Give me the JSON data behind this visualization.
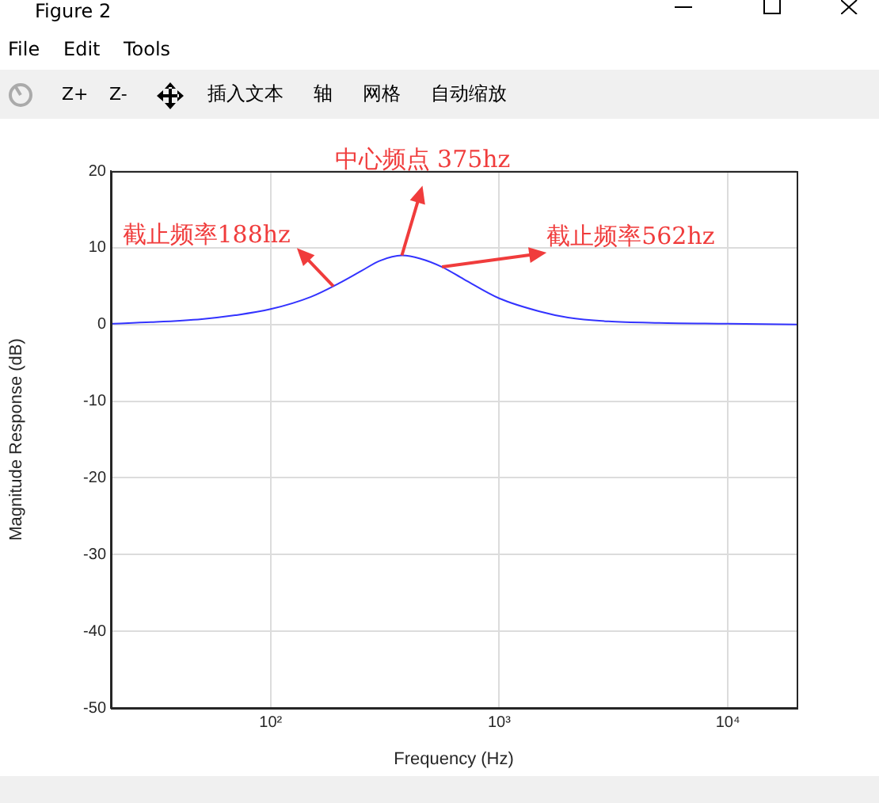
{
  "chart_data": {
    "type": "line",
    "xlabel": "Frequency (Hz)",
    "ylabel": "Magnitude Response (dB)",
    "log": "x",
    "grid": true,
    "marker": "none",
    "line_style": "solid",
    "legend": false,
    "xlim": [
      20,
      20000
    ],
    "xticks": [
      {
        "value": 100,
        "label": "10²"
      },
      {
        "value": 1000,
        "label": "10³"
      },
      {
        "value": 10000,
        "label": "10⁴"
      }
    ],
    "ylim": [
      -50,
      20
    ],
    "yticks": [
      -50,
      -40,
      -30,
      -20,
      -10,
      0,
      10,
      20
    ],
    "x": [
      20,
      30,
      50,
      70,
      100,
      150,
      200,
      250,
      300,
      375,
      450,
      562,
      700,
      1000,
      1500,
      2000,
      3000,
      5000,
      10000,
      20000
    ],
    "series": [
      {
        "color": "#3333ff",
        "values": [
          0.1,
          0.3,
          0.7,
          1.2,
          2.0,
          3.6,
          5.4,
          7.0,
          8.3,
          9.0,
          8.6,
          7.5,
          5.9,
          3.4,
          1.7,
          0.9,
          0.4,
          0.2,
          0.1,
          0
        ]
      }
    ],
    "annotations": [
      "Figure 2",
      "File",
      "Edit",
      "Tools",
      "Z+",
      "Z-",
      "插入文本",
      "轴",
      "网格",
      "自动缩放",
      {
        "text": "截止频率188hz",
        "x": 188,
        "y": 5.0
      },
      {
        "text": "中心频点 375hz",
        "x": 375,
        "y": 9.0
      },
      {
        "text": "截止频率562hz",
        "x": 562,
        "y": 7.5
      }
    ]
  }
}
